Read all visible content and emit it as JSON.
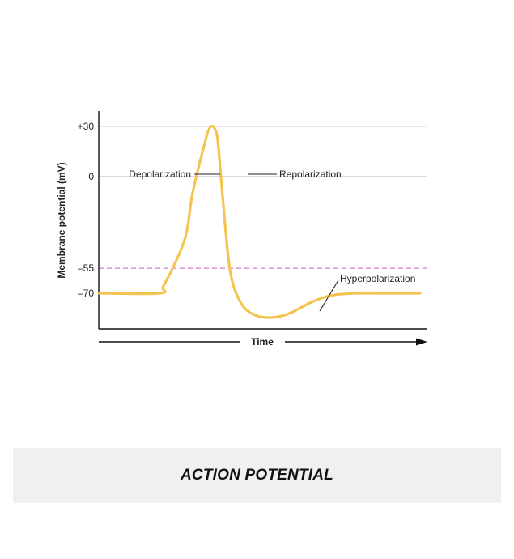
{
  "caption": "ACTION POTENTIAL",
  "chart_data": {
    "type": "line",
    "title": "",
    "xlabel": "Time",
    "ylabel": "Membrane potential (mV)",
    "yticks": [
      {
        "value": 30,
        "label": "+30"
      },
      {
        "value": 0,
        "label": "0"
      },
      {
        "value": -55,
        "label": "–55"
      },
      {
        "value": -70,
        "label": "–70"
      }
    ],
    "ylim": [
      -87,
      34
    ],
    "grid": true,
    "threshold": {
      "value": -55,
      "style": "dashed",
      "color": "#d27ad2"
    },
    "series": [
      {
        "color": "#f3c44f",
        "x": [
          0,
          19,
          20,
          23,
          27,
          29,
          31,
          33,
          34,
          35,
          36,
          37,
          38,
          39,
          40,
          41,
          42,
          43,
          44,
          45,
          46,
          47,
          48,
          49,
          50,
          52,
          54,
          56,
          58,
          60,
          62,
          64,
          66,
          70,
          74,
          78,
          82,
          86,
          90,
          96,
          100
        ],
        "y": [
          -70,
          -70,
          -66,
          -55,
          -36,
          -12,
          5,
          20,
          27,
          30,
          29,
          22,
          0,
          -22,
          -43,
          -58,
          -66,
          -71,
          -75,
          -78,
          -80,
          -81.5,
          -82.5,
          -83.3,
          -84,
          -84.5,
          -84.5,
          -84,
          -83,
          -81.5,
          -79.5,
          -77.5,
          -75.5,
          -72.5,
          -70.8,
          -70.2,
          -70,
          -70,
          -70,
          -70,
          -70
        ]
      }
    ],
    "annotations": [
      {
        "text": "Depolarization",
        "x": 28,
        "y": 8
      },
      {
        "text": "Repolarization",
        "x": 38,
        "y": 8
      },
      {
        "text": "Hyperpolarization",
        "x": 66,
        "y": -82
      }
    ]
  }
}
